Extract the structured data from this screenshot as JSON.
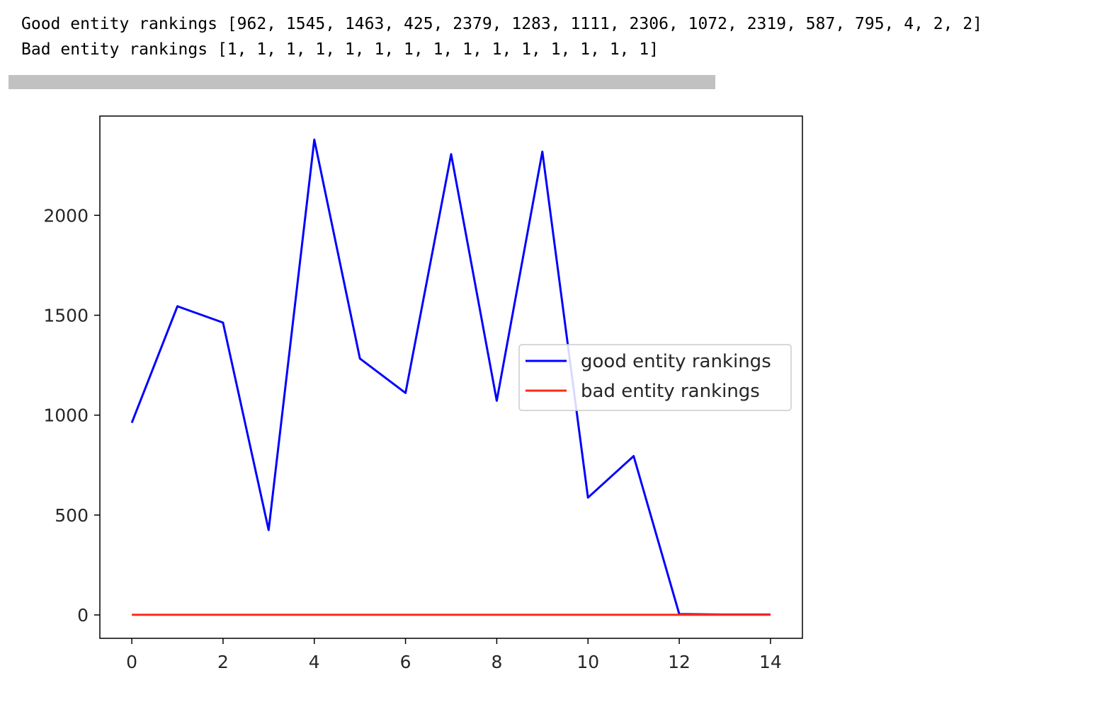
{
  "output": {
    "line1": "Good entity rankings [962, 1545, 1463, 425, 2379, 1283, 1111, 2306, 1072, 2319, 587, 795, 4, 2, 2]",
    "line2": "Bad entity rankings [1, 1, 1, 1, 1, 1, 1, 1, 1, 1, 1, 1, 1, 1, 1]"
  },
  "chart_data": {
    "type": "line",
    "title": "",
    "xlabel": "",
    "ylabel": "",
    "x": [
      0,
      1,
      2,
      3,
      4,
      5,
      6,
      7,
      8,
      9,
      10,
      11,
      12,
      13,
      14
    ],
    "xticks": [
      0,
      2,
      4,
      6,
      8,
      10,
      12,
      14
    ],
    "yticks": [
      0,
      500,
      1000,
      1500,
      2000
    ],
    "xlim": [
      -0.7,
      14.7
    ],
    "ylim": [
      -117,
      2497
    ],
    "grid": false,
    "legend": "center-right",
    "series": [
      {
        "name": "good entity rankings",
        "color": "#0000ff",
        "values": [
          962,
          1545,
          1463,
          425,
          2379,
          1283,
          1111,
          2306,
          1072,
          2319,
          587,
          795,
          4,
          2,
          2
        ]
      },
      {
        "name": "bad entity rankings",
        "color": "#ff2a1a",
        "values": [
          1,
          1,
          1,
          1,
          1,
          1,
          1,
          1,
          1,
          1,
          1,
          1,
          1,
          1,
          1
        ]
      }
    ]
  }
}
